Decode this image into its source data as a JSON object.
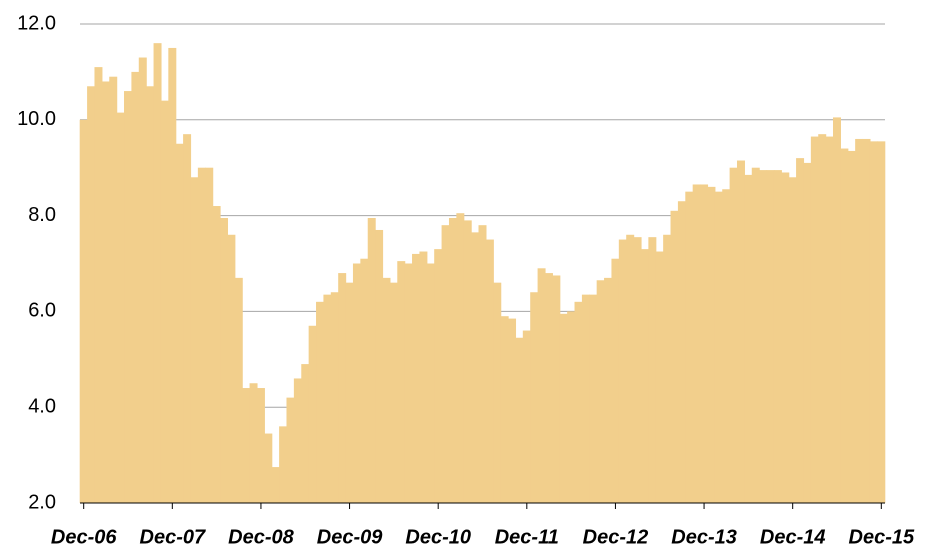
{
  "chart_data": {
    "type": "bar",
    "categories": [
      "Dec-06",
      null,
      null,
      null,
      null,
      null,
      null,
      null,
      null,
      null,
      null,
      null,
      "Dec-07",
      null,
      null,
      null,
      null,
      null,
      null,
      null,
      null,
      null,
      null,
      null,
      "Dec-08",
      null,
      null,
      null,
      null,
      null,
      null,
      null,
      null,
      null,
      null,
      null,
      "Dec-09",
      null,
      null,
      null,
      null,
      null,
      null,
      null,
      null,
      null,
      null,
      null,
      "Dec-10",
      null,
      null,
      null,
      null,
      null,
      null,
      null,
      null,
      null,
      null,
      null,
      "Dec-11",
      null,
      null,
      null,
      null,
      null,
      null,
      null,
      null,
      null,
      null,
      null,
      "Dec-12",
      null,
      null,
      null,
      null,
      null,
      null,
      null,
      null,
      null,
      null,
      null,
      "Dec-13",
      null,
      null,
      null,
      null,
      null,
      null,
      null,
      null,
      null,
      null,
      null,
      "Dec-14",
      null,
      null,
      null,
      null,
      null,
      null,
      null,
      null,
      null,
      null,
      null,
      "Dec-15"
    ],
    "values": [
      10.0,
      10.7,
      11.1,
      10.8,
      10.9,
      10.15,
      10.6,
      11.0,
      11.3,
      10.7,
      11.6,
      10.4,
      11.5,
      9.5,
      9.7,
      8.8,
      9.0,
      9.0,
      8.2,
      7.95,
      7.6,
      6.7,
      4.4,
      4.5,
      4.4,
      3.45,
      2.75,
      3.6,
      4.2,
      4.6,
      4.9,
      5.7,
      6.2,
      6.35,
      6.4,
      6.8,
      6.6,
      7.0,
      7.1,
      7.95,
      7.7,
      6.7,
      6.6,
      7.05,
      7.0,
      7.2,
      7.25,
      7.0,
      7.3,
      7.8,
      7.95,
      8.05,
      7.9,
      7.65,
      7.8,
      7.5,
      6.6,
      5.9,
      5.85,
      5.45,
      5.6,
      6.4,
      6.9,
      6.8,
      6.75,
      5.95,
      6.0,
      6.2,
      6.35,
      6.35,
      6.65,
      6.7,
      7.1,
      7.5,
      7.6,
      7.55,
      7.3,
      7.55,
      7.25,
      7.6,
      8.1,
      8.3,
      8.5,
      8.65,
      8.65,
      8.6,
      8.5,
      8.55,
      9.0,
      9.15,
      8.85,
      9.0,
      8.95,
      8.95,
      8.95,
      8.9,
      8.8,
      9.2,
      9.1,
      9.65,
      9.7,
      9.65,
      10.05,
      9.4,
      9.35,
      9.6,
      9.6,
      9.55,
      9.55
    ],
    "color": "#f2cf8c",
    "ylim": [
      2,
      12
    ],
    "yticks": [
      {
        "value": 2,
        "label": "2.0"
      },
      {
        "value": 4,
        "label": "4.0"
      },
      {
        "value": 6,
        "label": "6.0"
      },
      {
        "value": 8,
        "label": "8.0"
      },
      {
        "value": 10,
        "label": "10.0"
      },
      {
        "value": 12,
        "label": "12.0"
      }
    ],
    "grid": true
  }
}
